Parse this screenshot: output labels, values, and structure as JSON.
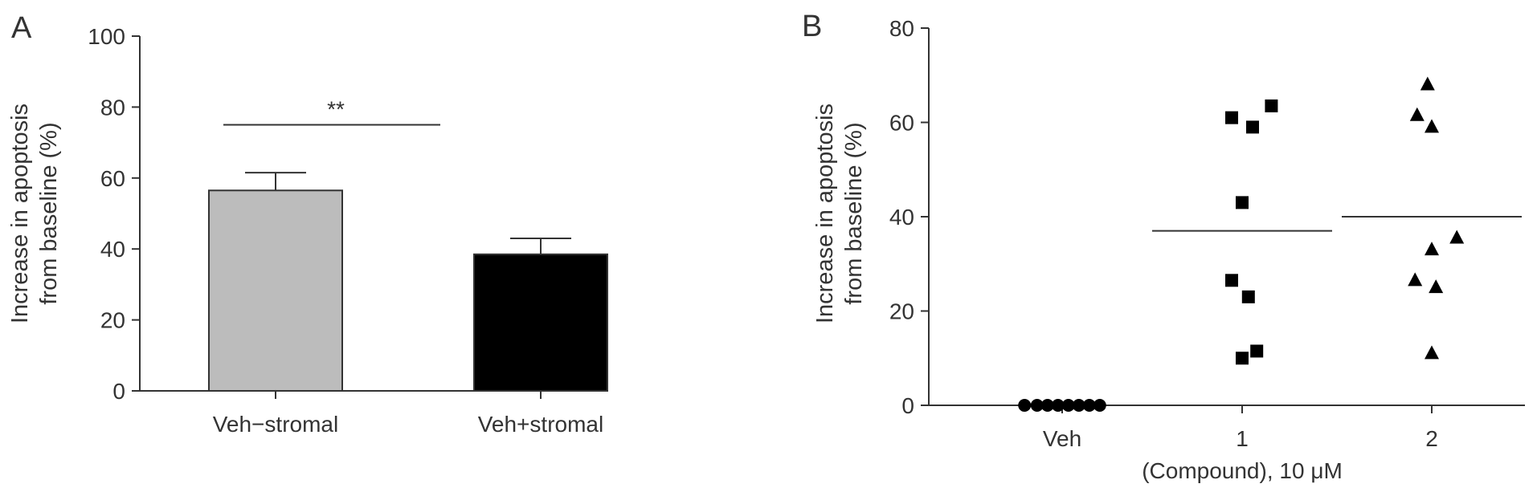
{
  "chart_data": [
    {
      "panel_label": "A",
      "type": "bar",
      "categories": [
        "Veh−stromal",
        "Veh+stromal"
      ],
      "values": [
        56.5,
        38.5
      ],
      "errors": [
        5.0,
        4.5
      ],
      "colors": [
        "#bcbcbc",
        "#000000"
      ],
      "ylabel_lines": [
        "Increase in apoptosis",
        "from baseline (%)"
      ],
      "ylim": [
        0,
        100
      ],
      "yticks": [
        0,
        20,
        40,
        60,
        80,
        100
      ],
      "significance": {
        "between": [
          0,
          1
        ],
        "y": 75,
        "label": "**"
      }
    },
    {
      "panel_label": "B",
      "type": "scatter",
      "categories": [
        "Veh",
        "1",
        "2"
      ],
      "xlabel": "(Compound), 10 μM",
      "ylabel_lines": [
        "Increase in apoptosis",
        "from baseline (%)"
      ],
      "ylim": [
        0,
        80
      ],
      "yticks": [
        0,
        20,
        40,
        60,
        80
      ],
      "series": [
        {
          "category": "Veh",
          "marker": "circle",
          "mean": 0,
          "points": [
            [
              -0.18,
              0
            ],
            [
              -0.12,
              0
            ],
            [
              -0.07,
              0
            ],
            [
              -0.02,
              0
            ],
            [
              0.03,
              0
            ],
            [
              0.08,
              0
            ],
            [
              0.13,
              0
            ],
            [
              0.18,
              0
            ]
          ]
        },
        {
          "category": "1",
          "marker": "square",
          "mean": 37,
          "points": [
            [
              -0.05,
              61
            ],
            [
              0.05,
              59
            ],
            [
              0.14,
              63.5
            ],
            [
              0.0,
              43
            ],
            [
              -0.05,
              26.5
            ],
            [
              0.03,
              23
            ],
            [
              0.0,
              10
            ],
            [
              0.07,
              11.5
            ]
          ]
        },
        {
          "category": "2",
          "marker": "triangle",
          "mean": 40,
          "points": [
            [
              -0.02,
              68
            ],
            [
              -0.07,
              61.5
            ],
            [
              0.0,
              59
            ],
            [
              0.12,
              35.5
            ],
            [
              0.0,
              33
            ],
            [
              -0.08,
              26.5
            ],
            [
              0.02,
              25
            ],
            [
              0.0,
              11
            ]
          ]
        }
      ]
    }
  ]
}
